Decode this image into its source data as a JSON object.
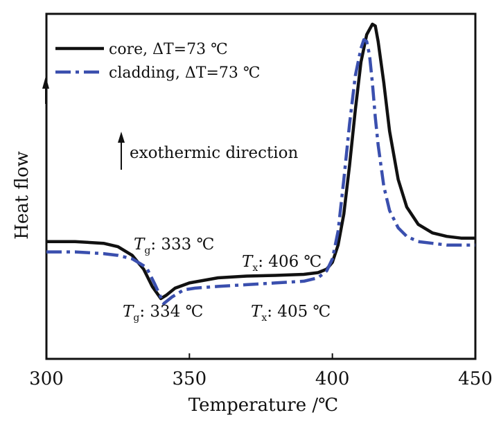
{
  "chart_data": {
    "type": "line",
    "title": "",
    "xlabel": "Temperature /℃",
    "ylabel": "Heat flow",
    "xlim": [
      300,
      450
    ],
    "ylim": [
      0,
      100
    ],
    "x_ticks": [
      "300",
      "350",
      "400",
      "450"
    ],
    "y_ticks": [],
    "legend_position": "top-left",
    "series": [
      {
        "name": "core, ΔT=73 ℃",
        "color": "#111111",
        "style": "solid",
        "x": [
          300,
          310,
          320,
          325,
          330,
          334,
          337,
          340,
          342,
          345,
          350,
          360,
          370,
          380,
          390,
          395,
          398,
          400,
          402,
          404,
          406,
          408,
          410,
          412,
          414,
          415,
          416,
          418,
          420,
          423,
          426,
          430,
          435,
          440,
          445,
          450
        ],
        "y": [
          34.0,
          34.0,
          33.5,
          32.5,
          30.0,
          26.0,
          21.0,
          17.5,
          18.5,
          20.5,
          22.0,
          23.5,
          24.0,
          24.2,
          24.5,
          25.0,
          26.0,
          28.0,
          33.0,
          42.0,
          56.0,
          72.0,
          86.0,
          94.0,
          97.0,
          96.5,
          92.0,
          80.0,
          66.0,
          52.0,
          44.0,
          39.0,
          36.5,
          35.5,
          35.0,
          35.0
        ]
      },
      {
        "name": "cladding, ΔT=73 ℃",
        "color": "#3a4fae",
        "style": "dashdot",
        "x": [
          300,
          310,
          320,
          325,
          330,
          335,
          338,
          341,
          344,
          348,
          352,
          360,
          370,
          380,
          390,
          395,
          398,
          400,
          402,
          404,
          406,
          408,
          410,
          411,
          412,
          413,
          414,
          415,
          416,
          418,
          420,
          423,
          426,
          430,
          435,
          440,
          445,
          450
        ],
        "y": [
          31.0,
          31.0,
          30.5,
          30.0,
          29.0,
          26.5,
          21.5,
          16.0,
          18.0,
          20.0,
          20.5,
          21.0,
          21.5,
          22.0,
          22.5,
          23.5,
          25.5,
          29.0,
          37.0,
          52.0,
          68.0,
          82.0,
          90.0,
          92.5,
          92.0,
          88.0,
          80.0,
          70.0,
          62.0,
          50.0,
          43.0,
          38.0,
          35.5,
          34.0,
          33.5,
          33.0,
          33.0,
          33.0
        ]
      }
    ],
    "legend": [
      {
        "label": "core, ΔT=73 ℃",
        "series": 0
      },
      {
        "label": "cladding, ΔT=73 ℃",
        "series": 1
      }
    ],
    "annotations": {
      "exo_text": "exothermic direction",
      "tg_core": {
        "symbol": "T",
        "sub": "g",
        "text": ": 333 ℃"
      },
      "tg_clad": {
        "symbol": "T",
        "sub": "g",
        "text": ": 334 ℃"
      },
      "tx_core": {
        "symbol": "T",
        "sub": "x",
        "text": ": 406 ℃"
      },
      "tx_clad": {
        "symbol": "T",
        "sub": "x",
        "text": ": 405 ℃"
      }
    }
  }
}
